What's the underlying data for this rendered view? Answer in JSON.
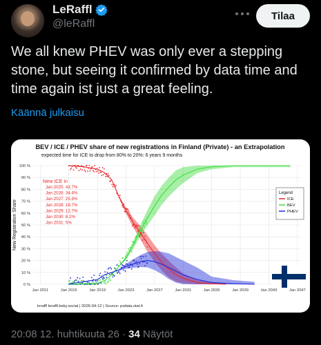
{
  "tweet": {
    "author_name": "LeRaffl",
    "handle": "@leRaffl",
    "follow_label": "Tilaa",
    "text": "We all knew PHEV was only ever a stepping stone, but seeing it confirmed by data time and time again ist just a great feeling.",
    "translate_label": "Käännä julkaisu",
    "time": "20:08",
    "date": "12. huhtikuuta 26",
    "separator": "·",
    "views_count": "34",
    "views_label": "Näytöt"
  },
  "colors": {
    "background": "#000000",
    "text": "#e7e9ea",
    "muted": "#71767b",
    "link": "#1d9bf0",
    "verified": "#1d9bf0",
    "ice": "#e8262a",
    "bev": "#3fdc3f",
    "phev": "#1f2bd6"
  },
  "chart_data": {
    "type": "line",
    "title": "BEV / ICE / PHEV share of new registrations in Finland (Private) - an Extrapolation",
    "subtitle": "expected time for ICE to drop from 80% to 20%: 6 years 9 months",
    "xlabel": "",
    "ylabel": "New Registration Share",
    "x_ticks": [
      "Jan 2011",
      "Jan 2015",
      "Jan 2019",
      "Jan 2023",
      "Jan 2027",
      "Jan 2031",
      "Jan 2035",
      "Jan 2039",
      "Jan 2043",
      "Jan 2047"
    ],
    "y_ticks": [
      "0 %",
      "10 %",
      "20 %",
      "30 %",
      "40 %",
      "50 %",
      "60 %",
      "70 %",
      "80 %",
      "90 %",
      "100 %"
    ],
    "xlim": [
      2010,
      2047.5
    ],
    "ylim": [
      0,
      100
    ],
    "grid": true,
    "legend": {
      "title": "Legend",
      "placement": "right",
      "entries": [
        "ICE",
        "BEV",
        "PHEV"
      ]
    },
    "annotation": {
      "title": "New ICE in",
      "lines": [
        "Jan 2025: 43.7%",
        "Jan 2026: 34.4%",
        "Jan 2027: 25.9%",
        "Jan 2028: 18.7%",
        "Jan 2029: 12.7%",
        "Jan 2030: 8.2%",
        "Jan 2031: 5%"
      ]
    },
    "series": [
      {
        "name": "ICE",
        "x": [
          2015,
          2017,
          2019,
          2020,
          2021,
          2022,
          2023,
          2024,
          2025,
          2026,
          2027,
          2028,
          2029,
          2030,
          2031,
          2033,
          2035,
          2037
        ],
        "values": [
          100,
          99,
          97,
          94,
          88,
          74,
          62,
          52,
          43.7,
          34.4,
          25.9,
          18.7,
          12.7,
          8.2,
          5,
          1.5,
          0.5,
          0
        ]
      },
      {
        "name": "BEV",
        "x": [
          2015,
          2017,
          2019,
          2020,
          2021,
          2022,
          2023,
          2024,
          2025,
          2026,
          2027,
          2028,
          2029,
          2030,
          2031,
          2033,
          2035,
          2038,
          2041,
          2044,
          2046
        ],
        "values": [
          0,
          0.5,
          1,
          3,
          8,
          15,
          22,
          33,
          45,
          56,
          66,
          75,
          82,
          88,
          92,
          97,
          99,
          100,
          100,
          100,
          100
        ]
      },
      {
        "name": "PHEV",
        "x": [
          2015,
          2017,
          2019,
          2020,
          2021,
          2022,
          2023,
          2024,
          2025,
          2026,
          2027,
          2028,
          2029,
          2030,
          2031,
          2033,
          2035,
          2038,
          2041
        ],
        "values": [
          0.5,
          2,
          4,
          8,
          10,
          12,
          15,
          17,
          19,
          20,
          19,
          17,
          14,
          11,
          8,
          4,
          1.5,
          0.5,
          0
        ]
      }
    ],
    "credits": "leraffl   leraffl.bsky.social  | 2026-04-12 | Source: pxdata.stat.fi"
  }
}
